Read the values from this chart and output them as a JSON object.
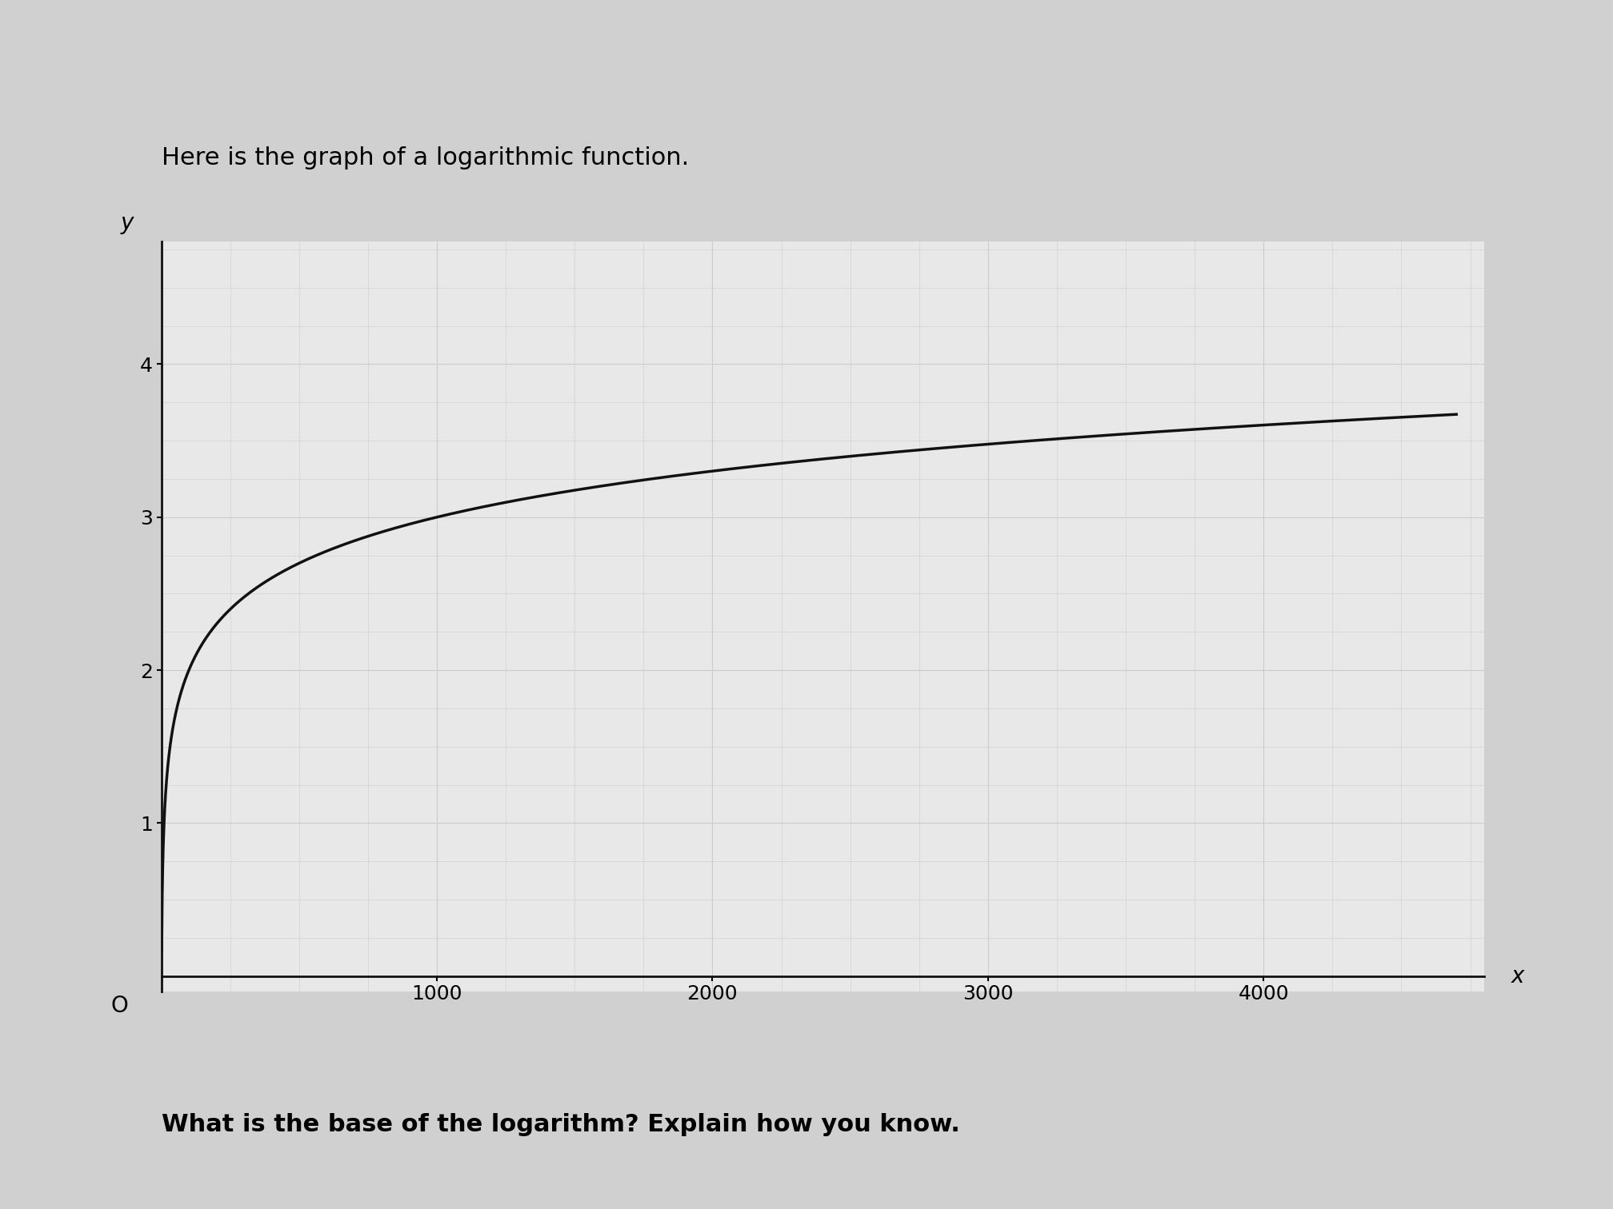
{
  "title": "Here is the graph of a logarithmic function.",
  "subtitle": "What is the base of the logarithm? Explain how you know.",
  "title_fontsize": 22,
  "subtitle_fontsize": 22,
  "xlabel": "x",
  "ylabel": "y",
  "xlim": [
    0,
    4800
  ],
  "ylim": [
    -0.1,
    4.8
  ],
  "xticks": [
    1000,
    2000,
    3000,
    4000
  ],
  "yticks": [
    1,
    2,
    3,
    4
  ],
  "log_base": 10,
  "curve_color": "#111111",
  "curve_linewidth": 2.5,
  "grid_color": "#cccccc",
  "grid_linewidth": 0.8,
  "background_color": "#e8e8e8",
  "outer_background": "#d0d0d0",
  "axis_color": "#111111",
  "label_fontsize": 20,
  "tick_fontsize": 18
}
